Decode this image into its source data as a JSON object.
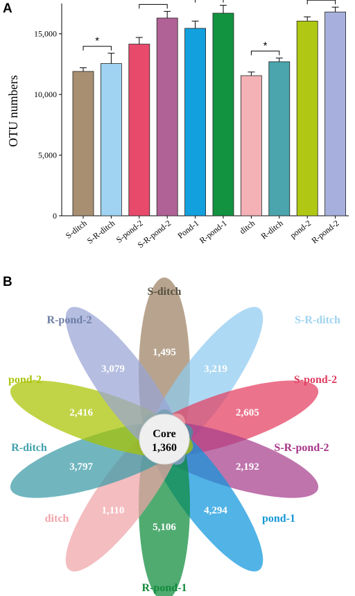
{
  "chart_data": [
    {
      "type": "bar",
      "panel": "A",
      "ylabel": "OTU numbers",
      "ylim": [
        0,
        17500
      ],
      "yticks": [
        "0",
        "5,000",
        "10,000",
        "15,000"
      ],
      "ytick_values": [
        0,
        5000,
        10000,
        15000
      ],
      "categories": [
        "S-ditch",
        "S-R-ditch",
        "S-pond-2",
        "S-R-pond-2",
        "Pond-1",
        "R-pond-1",
        "ditch",
        "R-ditch",
        "pond-2",
        "R-pond-2"
      ],
      "values": [
        11900,
        12550,
        14150,
        16300,
        15450,
        16700,
        11550,
        12700,
        16050,
        16800
      ],
      "errors": [
        300,
        850,
        550,
        550,
        600,
        650,
        300,
        300,
        350,
        400
      ],
      "colors": [
        "#a88f72",
        "#9fd3f1",
        "#e84a6c",
        "#b06296",
        "#13a0df",
        "#129340",
        "#f4b1b6",
        "#4aa5ad",
        "#b0c814",
        "#a7b0dc"
      ],
      "significance": [
        {
          "pair": [
            0,
            1
          ],
          "label": "*"
        },
        {
          "pair": [
            2,
            3
          ],
          "label": "*"
        },
        {
          "pair": [
            4,
            5
          ],
          "label": "*"
        },
        {
          "pair": [
            6,
            7
          ],
          "label": "*"
        },
        {
          "pair": [
            8,
            9
          ],
          "label": "*"
        }
      ]
    },
    {
      "type": "flower-venn",
      "panel": "B",
      "core": {
        "label": "Core",
        "value": "1,360"
      },
      "petals": [
        {
          "name": "S-ditch",
          "value": "1,495",
          "color": "#9d8163",
          "label_color": "#57503f"
        },
        {
          "name": "S-R-ditch",
          "value": "3,219",
          "color": "#8fcaf0",
          "label_color": "#9fd3f1"
        },
        {
          "name": "S-pond-2",
          "value": "2,605",
          "color": "#e43d5f",
          "label_color": "#e03c5e"
        },
        {
          "name": "S-R-pond-2",
          "value": "2,192",
          "color": "#a63e8c",
          "label_color": "#a8348a"
        },
        {
          "name": "pond-1",
          "value": "4,294",
          "color": "#0f95dc",
          "label_color": "#1496d8"
        },
        {
          "name": "R-pond-1",
          "value": "5,106",
          "color": "#0c8a3a",
          "label_color": "#118a3a"
        },
        {
          "name": "ditch",
          "value": "1,110",
          "color": "#f0a3a8",
          "label_color": "#f0a3a8"
        },
        {
          "name": "R-ditch",
          "value": "3,797",
          "color": "#3a9aa6",
          "label_color": "#40a1ac"
        },
        {
          "name": "pond-2",
          "value": "2,416",
          "color": "#a9c400",
          "label_color": "#aac40c"
        },
        {
          "name": "R-pond-2",
          "value": "3,079",
          "color": "#98a3d6",
          "label_color": "#6e7ea6"
        }
      ]
    }
  ]
}
